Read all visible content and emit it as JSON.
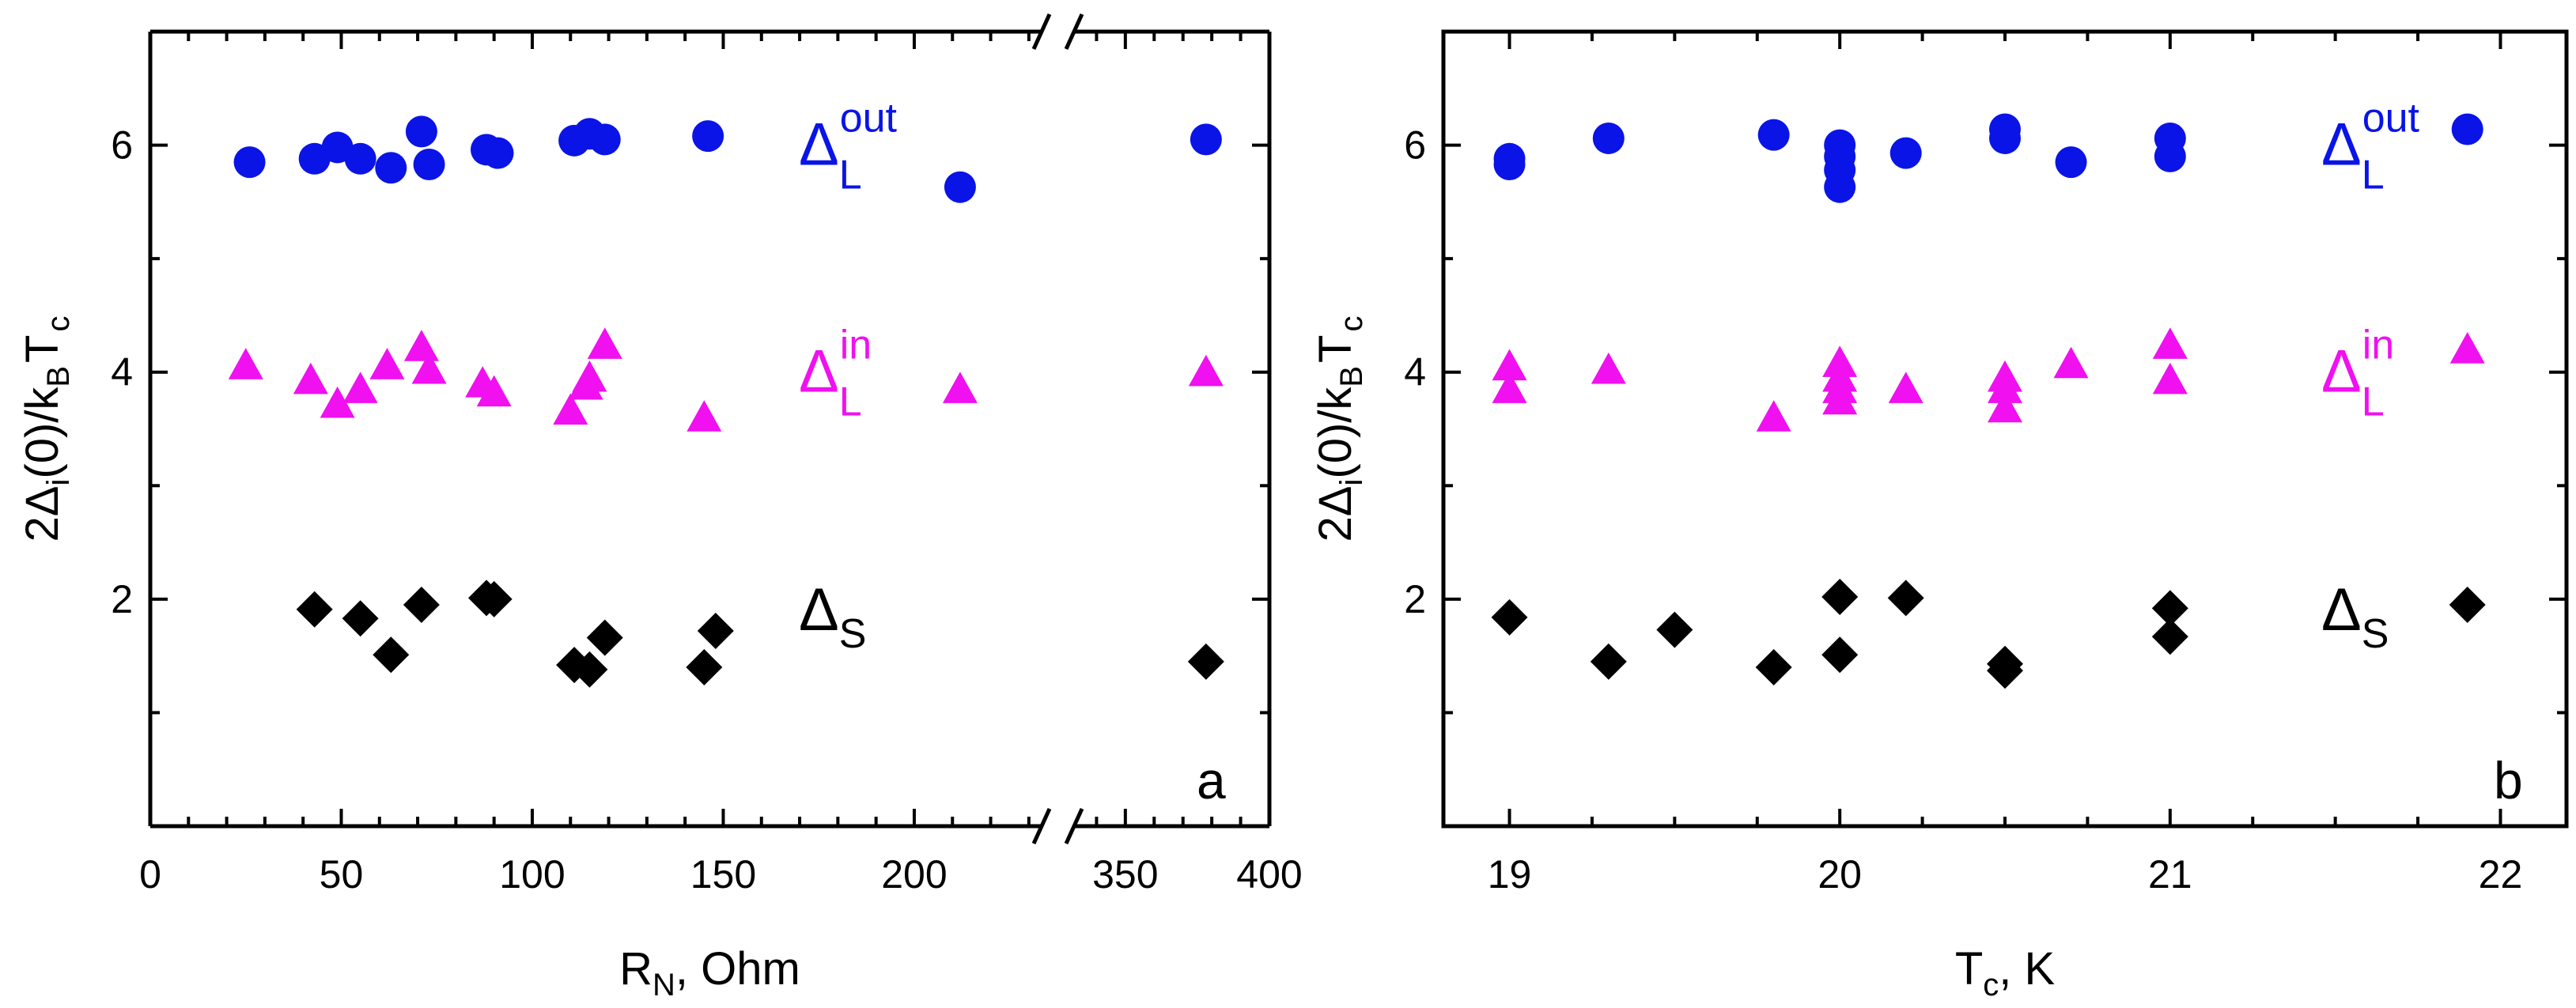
{
  "chart_data": [
    {
      "type": "scatter",
      "panel_label": "a",
      "xlabel": {
        "main": "R",
        "sub": "N",
        "rest": ", Ohm"
      },
      "ylabel": {
        "pre": "2Δ",
        "sub1": "i",
        "mid": "(0)/k",
        "sub2": "B",
        "mid2": "T",
        "sub3": "c"
      },
      "ylim": [
        0,
        7
      ],
      "yticks": [
        2,
        4,
        6
      ],
      "x_broken_axis": {
        "segment1_range": [
          0,
          235
        ],
        "segment2_range": [
          330,
          400
        ],
        "segment1_ticks": [
          "0",
          "50",
          "100",
          "150",
          "200"
        ],
        "segment2_ticks": [
          "350",
          "400"
        ]
      },
      "series": [
        {
          "name_main": "Δ",
          "name_sub": "L",
          "name_sup": "out",
          "color": "#0a14e6",
          "marker": "circle",
          "points": [
            [
              26,
              5.85
            ],
            [
              43,
              5.88
            ],
            [
              49,
              5.98
            ],
            [
              55,
              5.88
            ],
            [
              63,
              5.8
            ],
            [
              71,
              6.12
            ],
            [
              73,
              5.83
            ],
            [
              88,
              5.96
            ],
            [
              91,
              5.93
            ],
            [
              111,
              6.04
            ],
            [
              115,
              6.1
            ],
            [
              119,
              6.05
            ],
            [
              146,
              6.08
            ],
            [
              212,
              5.63
            ],
            [
              378,
              6.05
            ]
          ]
        },
        {
          "name_main": "Δ",
          "name_sub": "L",
          "name_sup": "in",
          "color": "#f010f0",
          "marker": "triangle",
          "points": [
            [
              25,
              4.06
            ],
            [
              42,
              3.93
            ],
            [
              49,
              3.72
            ],
            [
              55,
              3.85
            ],
            [
              62,
              4.06
            ],
            [
              71,
              4.22
            ],
            [
              73,
              4.02
            ],
            [
              87,
              3.9
            ],
            [
              90,
              3.82
            ],
            [
              110,
              3.66
            ],
            [
              114,
              3.88
            ],
            [
              115,
              3.95
            ],
            [
              119,
              4.24
            ],
            [
              145,
              3.6
            ],
            [
              212,
              3.85
            ],
            [
              378,
              4.0
            ]
          ]
        },
        {
          "name_main": "Δ",
          "name_sub": "S",
          "name_sup": "",
          "color": "#000000",
          "marker": "diamond",
          "points": [
            [
              43,
              1.91
            ],
            [
              55,
              1.83
            ],
            [
              63,
              1.51
            ],
            [
              71,
              1.95
            ],
            [
              88,
              2.01
            ],
            [
              90,
              2.0
            ],
            [
              111,
              1.42
            ],
            [
              115,
              1.38
            ],
            [
              119,
              1.66
            ],
            [
              145,
              1.4
            ],
            [
              148,
              1.72
            ],
            [
              378,
              1.45
            ]
          ]
        }
      ]
    },
    {
      "type": "scatter",
      "panel_label": "b",
      "xlabel": {
        "main": "T",
        "sub": "c",
        "rest": ", K"
      },
      "ylabel": {
        "pre": "2Δ",
        "sub1": "i",
        "mid": "(0)/k",
        "sub2": "B",
        "mid2": "T",
        "sub3": "c"
      },
      "xlim": [
        18.8,
        22.2
      ],
      "ylim": [
        0,
        7
      ],
      "xticks": [
        19,
        20,
        21,
        22
      ],
      "yticks": [
        2,
        4,
        6
      ],
      "series": [
        {
          "name_main": "Δ",
          "name_sub": "L",
          "name_sup": "out",
          "color": "#0a14e6",
          "marker": "circle",
          "points": [
            [
              19.0,
              5.88
            ],
            [
              19.0,
              5.83
            ],
            [
              19.3,
              6.06
            ],
            [
              19.8,
              6.09
            ],
            [
              20.0,
              6.0
            ],
            [
              20.0,
              5.9
            ],
            [
              20.0,
              5.78
            ],
            [
              20.0,
              5.63
            ],
            [
              20.2,
              5.93
            ],
            [
              20.5,
              6.14
            ],
            [
              20.5,
              6.06
            ],
            [
              20.7,
              5.85
            ],
            [
              21.0,
              6.06
            ],
            [
              21.0,
              5.9
            ],
            [
              21.9,
              6.14
            ]
          ]
        },
        {
          "name_main": "Δ",
          "name_sub": "L",
          "name_sup": "in",
          "color": "#f010f0",
          "marker": "triangle",
          "points": [
            [
              19.0,
              4.05
            ],
            [
              19.0,
              3.85
            ],
            [
              19.3,
              4.02
            ],
            [
              19.8,
              3.6
            ],
            [
              20.0,
              4.08
            ],
            [
              20.0,
              3.95
            ],
            [
              20.0,
              3.85
            ],
            [
              20.0,
              3.75
            ],
            [
              20.2,
              3.85
            ],
            [
              20.5,
              3.95
            ],
            [
              20.5,
              3.85
            ],
            [
              20.5,
              3.68
            ],
            [
              20.7,
              4.07
            ],
            [
              21.0,
              4.24
            ],
            [
              21.0,
              3.93
            ],
            [
              21.9,
              4.2
            ]
          ]
        },
        {
          "name_main": "Δ",
          "name_sub": "S",
          "name_sup": "",
          "color": "#000000",
          "marker": "diamond",
          "points": [
            [
              19.0,
              1.84
            ],
            [
              19.3,
              1.45
            ],
            [
              19.5,
              1.73
            ],
            [
              19.8,
              1.4
            ],
            [
              20.0,
              2.02
            ],
            [
              20.0,
              1.51
            ],
            [
              20.2,
              2.01
            ],
            [
              20.5,
              1.43
            ],
            [
              20.5,
              1.37
            ],
            [
              21.0,
              1.92
            ],
            [
              21.0,
              1.67
            ],
            [
              21.9,
              1.95
            ]
          ]
        }
      ]
    }
  ]
}
